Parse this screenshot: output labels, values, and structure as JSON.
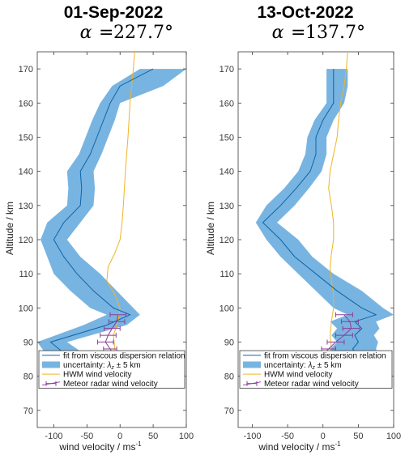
{
  "chart_data": [
    {
      "type": "line",
      "title": "01-Sep-2022",
      "subtitle_symbol": "α",
      "subtitle_value": "227.7°",
      "xlabel": "wind velocity / ms",
      "xlabel_sup": "-1",
      "ylabel": "Altitude / km",
      "xlim": [
        -125,
        100
      ],
      "ylim": [
        65,
        175
      ],
      "xticks": [
        -100,
        -50,
        0,
        50,
        100
      ],
      "yticks": [
        70,
        80,
        90,
        100,
        110,
        120,
        130,
        140,
        150,
        160,
        170
      ],
      "grid": false,
      "legend_position": "bottom",
      "legend": {
        "fit": "fit from viscous dispersion relation",
        "uncertainty_prefix": "uncertainty:",
        "uncertainty_symbol": "λ",
        "uncertainty_sub": "z",
        "uncertainty_suffix": "± 5 km",
        "hwm": "HWM wind velocity",
        "meteor": "Meteor radar wind velocity"
      },
      "colors": {
        "band": "#78b4e1",
        "fit": "#0e64a6",
        "hwm": "#f0b428",
        "meteor": "#8c3c9a"
      },
      "fit": {
        "alt": [
          86,
          90,
          95,
          98,
          100,
          105,
          110,
          115,
          120,
          125,
          130,
          135,
          140,
          145,
          150,
          155,
          160,
          165,
          170
        ],
        "wind": [
          -80,
          -105,
          -20,
          15,
          -10,
          -40,
          -65,
          -85,
          -100,
          -85,
          -60,
          -58,
          -60,
          -45,
          -35,
          -25,
          -15,
          0,
          50
        ]
      },
      "band": {
        "alt": [
          86,
          90,
          95,
          98,
          100,
          105,
          110,
          115,
          120,
          125,
          130,
          135,
          140,
          145,
          150,
          155,
          160,
          165,
          170
        ],
        "lower": [
          -110,
          -125,
          -55,
          -20,
          -45,
          -75,
          -100,
          -110,
          -120,
          -110,
          -80,
          -78,
          -80,
          -62,
          -52,
          -42,
          -30,
          -12,
          30
        ],
        "upper": [
          -50,
          -80,
          10,
          30,
          20,
          -5,
          -30,
          -60,
          -80,
          -60,
          -40,
          -38,
          -40,
          -28,
          -18,
          -8,
          0,
          65,
          100
        ]
      },
      "hwm": {
        "alt": [
          84,
          88,
          92,
          96,
          100,
          104,
          108,
          112,
          116,
          120,
          125,
          130,
          140,
          150,
          160,
          170,
          175
        ],
        "wind": [
          -5,
          -8,
          -10,
          -3,
          0,
          -8,
          -20,
          -18,
          -8,
          0,
          3,
          5,
          8,
          12,
          15,
          20,
          22
        ]
      },
      "meteor": {
        "alt": [
          82,
          84,
          86,
          88,
          90,
          92,
          94,
          96,
          98
        ],
        "wind": [
          -18,
          -15,
          -8,
          -15,
          -22,
          -18,
          -12,
          -5,
          -3
        ],
        "err": [
          8,
          8,
          10,
          10,
          12,
          12,
          12,
          12,
          12
        ]
      }
    },
    {
      "type": "line",
      "title": "13-Oct-2022",
      "subtitle_symbol": "α",
      "subtitle_value": "137.7°",
      "xlabel": "wind velocity / ms",
      "xlabel_sup": "-1",
      "ylabel": "Altitude / km",
      "xlim": [
        -120,
        100
      ],
      "ylim": [
        65,
        175
      ],
      "xticks": [
        -100,
        -50,
        0,
        50,
        100
      ],
      "yticks": [
        70,
        80,
        90,
        100,
        110,
        120,
        130,
        140,
        150,
        160,
        170
      ],
      "grid": false,
      "legend_position": "bottom",
      "legend": {
        "fit": "fit from viscous dispersion relation",
        "uncertainty_prefix": "uncertainty:",
        "uncertainty_symbol": "λ",
        "uncertainty_sub": "z",
        "uncertainty_suffix": "± 5 km",
        "hwm": "HWM wind velocity",
        "meteor": "Meteor radar wind velocity"
      },
      "colors": {
        "band": "#78b4e1",
        "fit": "#0e64a6",
        "hwm": "#f0b428",
        "meteor": "#8c3c9a"
      },
      "fit": {
        "alt": [
          86,
          88,
          90,
          92,
          94,
          96,
          98,
          100,
          105,
          110,
          115,
          120,
          125,
          130,
          135,
          140,
          145,
          150,
          155,
          160,
          165,
          170
        ],
        "wind": [
          50,
          42,
          50,
          45,
          55,
          45,
          75,
          55,
          20,
          -10,
          -40,
          -60,
          -85,
          -60,
          -38,
          -18,
          -10,
          -10,
          0,
          15,
          15,
          15
        ]
      },
      "band": {
        "alt": [
          86,
          88,
          90,
          92,
          94,
          96,
          98,
          100,
          105,
          110,
          115,
          120,
          125,
          130,
          135,
          140,
          145,
          150,
          155,
          160,
          165,
          170
        ],
        "lower": [
          15,
          10,
          20,
          12,
          20,
          10,
          35,
          15,
          -10,
          -35,
          -60,
          -80,
          -95,
          -80,
          -55,
          -35,
          -25,
          -22,
          -12,
          5,
          5,
          5
        ],
        "upper": [
          80,
          75,
          78,
          72,
          80,
          75,
          100,
          85,
          55,
          15,
          -15,
          -35,
          -65,
          -40,
          -20,
          -2,
          5,
          5,
          15,
          30,
          35,
          35
        ]
      },
      "hwm": {
        "alt": [
          80,
          84,
          88,
          92,
          96,
          100,
          104,
          108,
          112,
          116,
          120,
          125,
          130,
          135,
          140,
          145,
          150,
          155,
          160,
          165,
          170,
          175
        ],
        "wind": [
          8,
          12,
          12,
          10,
          12,
          15,
          15,
          12,
          10,
          12,
          15,
          15,
          12,
          8,
          10,
          15,
          20,
          22,
          25,
          30,
          33,
          35
        ]
      },
      "meteor": {
        "alt": [
          82,
          84,
          86,
          88,
          90,
          92,
          94,
          96,
          98
        ],
        "wind": [
          -12,
          -8,
          -2,
          8,
          18,
          30,
          40,
          38,
          30
        ],
        "err": [
          8,
          8,
          10,
          10,
          12,
          12,
          12,
          12,
          12
        ]
      }
    }
  ]
}
